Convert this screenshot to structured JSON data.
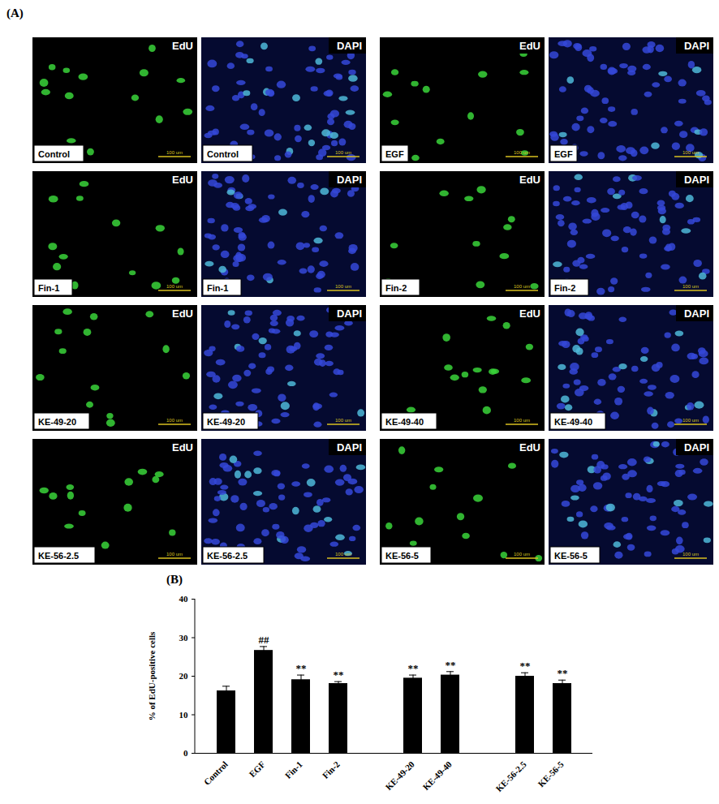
{
  "micrographs": {
    "panel_label": "(A)",
    "channels": [
      "EdU",
      "DAPI"
    ],
    "conditions": [
      "Control",
      "EGF",
      "Fin-1",
      "Fin-2",
      "KE-49-20",
      "KE-49-40",
      "KE-56-2.5",
      "KE-56-5"
    ],
    "scale_bar": "100 um"
  },
  "chart_data": {
    "type": "bar",
    "title": "(B)",
    "categories": [
      "Control",
      "EGF",
      "Fin-1",
      "Fin-2",
      null,
      "KE-49-20",
      "KE-49-40",
      null,
      "KE-56-2.5",
      "KE-56-5"
    ],
    "values": [
      16.2,
      26.7,
      19.1,
      18.1,
      null,
      19.5,
      20.3,
      null,
      20.0,
      18.1
    ],
    "errors": [
      1.2,
      1.0,
      1.2,
      0.5,
      null,
      0.8,
      0.9,
      null,
      0.9,
      0.9
    ],
    "annotations": [
      null,
      "##",
      "**",
      "**",
      null,
      "**",
      "**",
      null,
      "**",
      "**"
    ],
    "y_label": "% of EdU-positive cells",
    "color": "#000000",
    "ylim": [
      0,
      40
    ],
    "yticks": [
      0,
      10,
      20,
      30,
      40
    ],
    "grid": false
  }
}
